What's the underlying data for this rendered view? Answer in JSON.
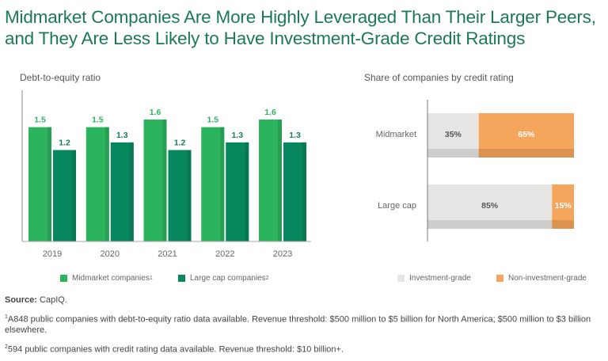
{
  "title": "Midmarket Companies Are More Highly Leveraged Than Their Larger Peers, and They Are Less Likely to Have Investment-Grade Credit Ratings",
  "colors": {
    "title": "#1b7a55",
    "midmarket": "#2cb35e",
    "large_cap": "#08875f",
    "investment_grade": "#e8e6e4",
    "non_investment_grade": "#f5a55c"
  },
  "chart_data": [
    {
      "type": "bar",
      "title": "Debt-to-equity ratio",
      "categories": [
        "2019",
        "2020",
        "2021",
        "2022",
        "2023"
      ],
      "series": [
        {
          "name": "Midmarket companies",
          "footnote": "1",
          "values": [
            1.5,
            1.5,
            1.6,
            1.5,
            1.6
          ]
        },
        {
          "name": "Large cap companies",
          "footnote": "2",
          "values": [
            1.2,
            1.3,
            1.2,
            1.3,
            1.3
          ]
        }
      ],
      "value_labels": {
        "midmarket": [
          "1.5",
          "1.5",
          "1.6",
          "1.5",
          "1.6"
        ],
        "large_cap": [
          "1.2",
          "1.3",
          "1.2",
          "1.3",
          "1.3"
        ]
      },
      "xlabel": "",
      "ylabel": "",
      "grid": false,
      "legend": "bottom"
    },
    {
      "type": "bar",
      "orientation": "horizontal",
      "stacked": true,
      "title": "Share of companies by credit rating",
      "categories": [
        "Midmarket",
        "Large cap"
      ],
      "series": [
        {
          "name": "Investment-grade",
          "values": [
            35,
            85
          ]
        },
        {
          "name": "Non-investment-grade",
          "values": [
            65,
            15
          ]
        }
      ],
      "value_labels": {
        "investment_grade": [
          "35%",
          "85%"
        ],
        "non_investment_grade": [
          "65%",
          "15%"
        ]
      },
      "xlim": [
        0,
        100
      ],
      "grid": false,
      "legend": "bottom"
    }
  ],
  "notes": {
    "source_label": "Source:",
    "source_text": " CapIQ.",
    "footnote1_mark": "1",
    "footnote1": "A848 public companies with debt-to-equity ratio data available. Revenue threshold: $500 million to $5 billion for North America; $500 million to $3 billion elsewhere.",
    "footnote2_mark": "2",
    "footnote2": "594 public companies with credit rating data available. Revenue threshold: $10 billion+."
  }
}
